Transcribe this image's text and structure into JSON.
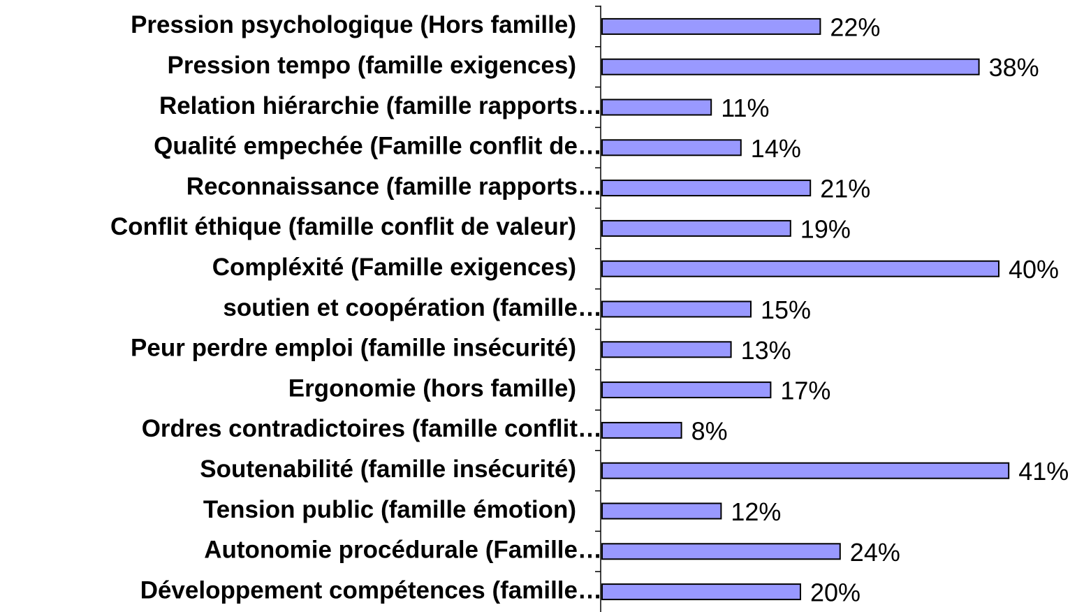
{
  "chart_data": {
    "type": "bar",
    "orientation": "horizontal",
    "color": "#9999ff",
    "categories": [
      "Pression psychologique (Hors famille)",
      "Pression tempo (famille exigences)",
      "Relation hiérarchie (famille rapports…",
      "Qualité empechée (Famille conflit de…",
      "Reconnaissance (famille rapports…",
      "Conflit éthique (famille conflit de valeur)",
      "Compléxité (Famille exigences)",
      "soutien et coopération (famille…",
      "Peur perdre emploi (famille insécurité)",
      "Ergonomie (hors famille)",
      "Ordres contradictoires (famille conflit…",
      "Soutenabilité (famille insécurité)",
      "Tension public (famille émotion)",
      "Autonomie procédurale (Famille…",
      "Développement compétences (famille…"
    ],
    "values": [
      22,
      38,
      11,
      14,
      21,
      19,
      40,
      15,
      13,
      17,
      8,
      41,
      12,
      24,
      20
    ],
    "value_labels": [
      "22%",
      "38%",
      "11%",
      "14%",
      "21%",
      "19%",
      "40%",
      "15%",
      "13%",
      "17%",
      "8%",
      "41%",
      "12%",
      "24%",
      "20%"
    ]
  }
}
